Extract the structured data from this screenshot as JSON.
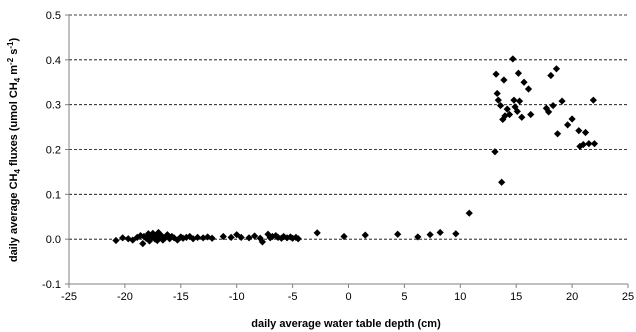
{
  "chart_data": {
    "type": "scatter",
    "title": "",
    "xlabel": "daily average water table depth (cm)",
    "ylabel": {
      "pre": "daily average CH",
      "sub1": "4",
      "mid": " fluxes (umol CH",
      "sub2": "4",
      "mid2": " m",
      "sup1": "-2",
      "mid3": " s",
      "sup2": "-1",
      "post": ")"
    },
    "xlim": [
      -25,
      25
    ],
    "ylim": [
      -0.1,
      0.5
    ],
    "xticks": [
      -25,
      -20,
      -15,
      -10,
      -5,
      0,
      5,
      10,
      15,
      20,
      25
    ],
    "yticks": [
      -0.1,
      0.0,
      0.1,
      0.2,
      0.3,
      0.4,
      0.5
    ],
    "ytick_labels": [
      "-0.1",
      "0.0",
      "0.1",
      "0.2",
      "0.3",
      "0.4",
      "0.5"
    ],
    "grid": "horizontal dashed",
    "legend": "none",
    "marker": "diamond",
    "colors": {
      "marker": "#000000",
      "grid": "#000000",
      "axis": "#808080"
    },
    "points": [
      [
        -20.8,
        -0.003
      ],
      [
        -20.2,
        0.003
      ],
      [
        -19.7,
        0.001
      ],
      [
        -19.3,
        -0.002
      ],
      [
        -18.9,
        0.004
      ],
      [
        -18.6,
        0.008
      ],
      [
        -18.4,
        -0.01
      ],
      [
        -18.3,
        0.006
      ],
      [
        -18.1,
        0.002
      ],
      [
        -17.9,
        0.012
      ],
      [
        -17.8,
        -0.004
      ],
      [
        -17.6,
        0.005
      ],
      [
        -17.5,
        0.013
      ],
      [
        -17.3,
        0.0
      ],
      [
        -17.2,
        0.009
      ],
      [
        -17.1,
        -0.003
      ],
      [
        -17.0,
        0.015
      ],
      [
        -16.9,
        0.004
      ],
      [
        -16.7,
        0.007
      ],
      [
        -16.6,
        -0.002
      ],
      [
        -16.4,
        0.003
      ],
      [
        -16.2,
        0.01
      ],
      [
        -16.0,
        0.001
      ],
      [
        -15.8,
        0.006
      ],
      [
        -15.6,
        0.003
      ],
      [
        -15.3,
        -0.002
      ],
      [
        -15.0,
        0.005
      ],
      [
        -14.8,
        0.002
      ],
      [
        -14.5,
        0.004
      ],
      [
        -14.2,
        0.006
      ],
      [
        -13.9,
        0.001
      ],
      [
        -13.5,
        0.004
      ],
      [
        -13.0,
        0.003
      ],
      [
        -12.6,
        0.005
      ],
      [
        -12.2,
        0.002
      ],
      [
        -11.2,
        0.006
      ],
      [
        -10.5,
        0.004
      ],
      [
        -10.0,
        0.01
      ],
      [
        -9.6,
        0.004
      ],
      [
        -8.9,
        0.003
      ],
      [
        -8.4,
        0.007
      ],
      [
        -7.9,
        0.002
      ],
      [
        -7.7,
        -0.006
      ],
      [
        -7.2,
        0.011
      ],
      [
        -7.0,
        0.003
      ],
      [
        -6.8,
        0.006
      ],
      [
        -6.5,
        0.008
      ],
      [
        -6.3,
        0.004
      ],
      [
        -6.0,
        0.002
      ],
      [
        -5.8,
        0.006
      ],
      [
        -5.5,
        0.003
      ],
      [
        -5.2,
        0.005
      ],
      [
        -5.0,
        0.002
      ],
      [
        -4.7,
        0.004
      ],
      [
        -4.5,
        0.001
      ],
      [
        -2.8,
        0.014
      ],
      [
        -0.4,
        0.006
      ],
      [
        1.5,
        0.009
      ],
      [
        4.4,
        0.011
      ],
      [
        6.2,
        0.005
      ],
      [
        7.3,
        0.01
      ],
      [
        8.2,
        0.015
      ],
      [
        9.6,
        0.012
      ],
      [
        10.8,
        0.058
      ],
      [
        13.1,
        0.195
      ],
      [
        13.2,
        0.368
      ],
      [
        13.3,
        0.325
      ],
      [
        13.4,
        0.31
      ],
      [
        13.6,
        0.298
      ],
      [
        13.7,
        0.127
      ],
      [
        13.8,
        0.267
      ],
      [
        13.9,
        0.355
      ],
      [
        14.0,
        0.275
      ],
      [
        14.2,
        0.29
      ],
      [
        14.4,
        0.278
      ],
      [
        14.7,
        0.402
      ],
      [
        14.8,
        0.31
      ],
      [
        14.9,
        0.295
      ],
      [
        15.1,
        0.285
      ],
      [
        15.2,
        0.37
      ],
      [
        15.3,
        0.308
      ],
      [
        15.5,
        0.272
      ],
      [
        15.7,
        0.35
      ],
      [
        16.1,
        0.335
      ],
      [
        16.3,
        0.278
      ],
      [
        17.7,
        0.292
      ],
      [
        17.9,
        0.284
      ],
      [
        18.1,
        0.365
      ],
      [
        18.3,
        0.298
      ],
      [
        18.6,
        0.38
      ],
      [
        18.7,
        0.235
      ],
      [
        19.1,
        0.308
      ],
      [
        19.6,
        0.255
      ],
      [
        20.0,
        0.268
      ],
      [
        20.6,
        0.242
      ],
      [
        20.7,
        0.207
      ],
      [
        21.0,
        0.211
      ],
      [
        21.2,
        0.238
      ],
      [
        21.5,
        0.213
      ],
      [
        21.9,
        0.31
      ],
      [
        22.0,
        0.213
      ]
    ]
  }
}
